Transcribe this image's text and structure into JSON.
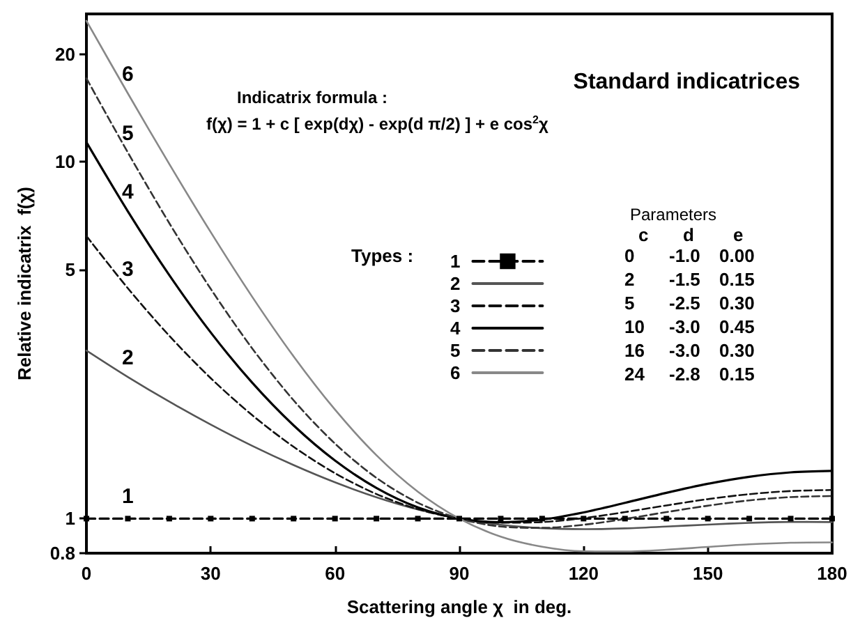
{
  "chart_data": {
    "type": "line",
    "title": "Standard indicatrices",
    "xlabel": "Scattering angle χ  in deg.",
    "ylabel": "Relative indicatrix  f(χ)",
    "x": [
      0,
      10,
      20,
      30,
      40,
      50,
      60,
      70,
      80,
      90,
      100,
      110,
      120,
      130,
      140,
      150,
      160,
      170,
      180
    ],
    "xlim": [
      0,
      180
    ],
    "xticks": [
      0,
      30,
      60,
      90,
      120,
      150,
      180
    ],
    "ylim": [
      0.8,
      26
    ],
    "yticks": [
      0.8,
      1,
      5,
      10,
      20
    ],
    "log": "y",
    "grid": false,
    "legend": "right",
    "series": [
      {
        "name": "1",
        "color": "#000000",
        "line_style": "dashed",
        "marker": "square",
        "values": [
          1,
          1,
          1,
          1,
          1,
          1,
          1,
          1,
          1,
          1,
          1,
          1,
          1,
          1,
          1,
          1,
          1,
          1,
          1
        ]
      },
      {
        "name": "2",
        "color": "#555555",
        "line_style": "solid",
        "marker": "none",
        "values": [
          2.96,
          2.495,
          2.128,
          1.835,
          1.6,
          1.413,
          1.264,
          1.148,
          1.061,
          1,
          0.961,
          0.94,
          0.934,
          0.939,
          0.95,
          0.962,
          0.973,
          0.979,
          0.978
        ]
      },
      {
        "name": "3",
        "color": "#111111",
        "line_style": "dashed",
        "marker": "none",
        "values": [
          6.2,
          4.425,
          3.256,
          2.477,
          1.951,
          1.59,
          1.341,
          1.172,
          1.063,
          1,
          0.974,
          0.978,
          1.003,
          1.043,
          1.089,
          1.134,
          1.171,
          1.195,
          1.203
        ]
      },
      {
        "name": "4",
        "color": "#000000",
        "line_style": "solid",
        "marker": "none",
        "values": [
          11.36,
          7.271,
          4.817,
          3.327,
          2.406,
          1.826,
          1.455,
          1.219,
          1.075,
          1,
          0.977,
          0.994,
          1.041,
          1.107,
          1.181,
          1.252,
          1.31,
          1.348,
          1.361
        ]
      },
      {
        "name": "5",
        "color": "#333333",
        "line_style": "dashed",
        "marker": "none",
        "values": [
          17.16,
          10.63,
          6.736,
          4.408,
          3.003,
          2.147,
          1.623,
          1.301,
          1.108,
          1,
          0.95,
          0.942,
          0.961,
          0.998,
          1.043,
          1.087,
          1.125,
          1.149,
          1.157
        ]
      },
      {
        "name": "6",
        "color": "#888888",
        "line_style": "solid",
        "marker": "none",
        "values": [
          24.86,
          15.57,
          9.868,
          6.357,
          4.19,
          2.851,
          2.021,
          1.506,
          1.19,
          1,
          0.89,
          0.834,
          0.81,
          0.809,
          0.818,
          0.833,
          0.847,
          0.856,
          0.858
        ]
      }
    ],
    "annotations": [
      "Indicatrix formula :",
      "f(χ) = 1 + c [ exp(dχ) - exp(d π/2) ] + e cos$^{2}$χ",
      "Types :",
      "Parameters",
      "c",
      "d",
      "e",
      "0",
      "-1.0",
      "0.00",
      "2",
      "-1.5",
      "0.15",
      "5",
      "-2.5",
      "0.30",
      "10",
      "-3.0",
      "0.45",
      "16",
      "-3.0",
      "0.30",
      "24",
      "-2.8",
      "0.15"
    ]
  }
}
